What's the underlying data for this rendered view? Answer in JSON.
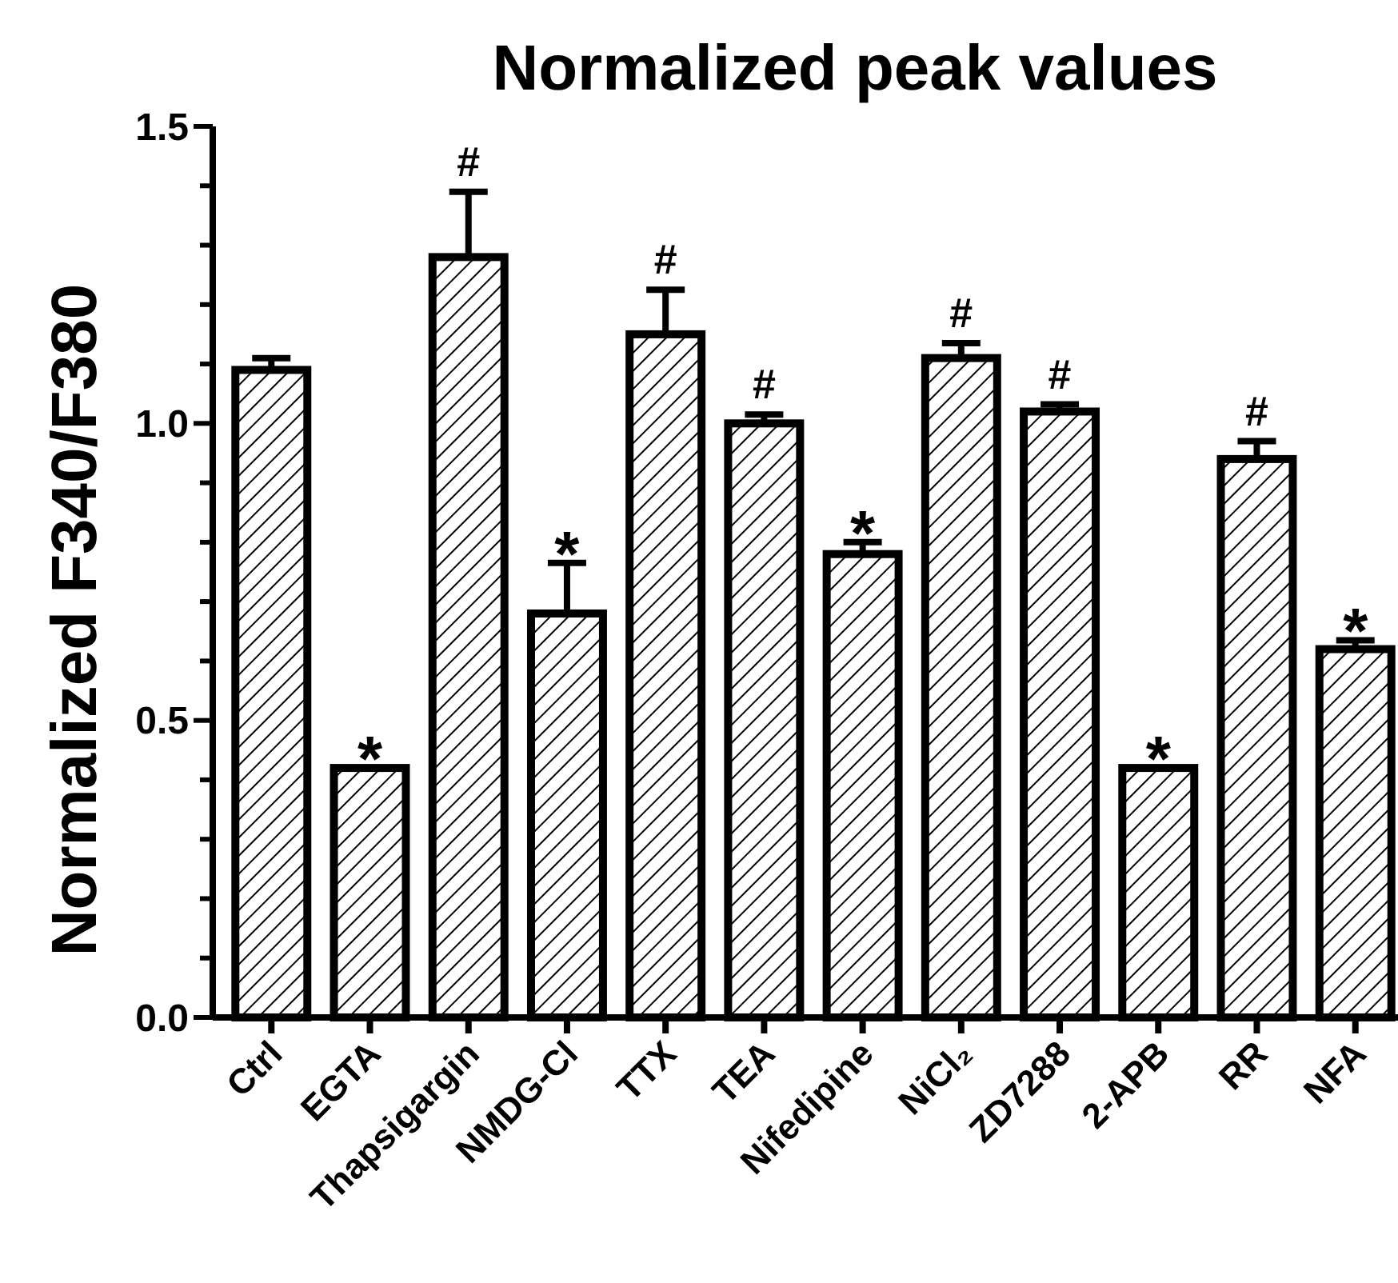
{
  "chart_data": {
    "type": "bar",
    "title": "Normalized peak values",
    "ylabel": "Normalized F340/F380",
    "categories": [
      "Ctrl",
      "EGTA",
      "Thapsigargin",
      "NMDG-Cl",
      "TTX",
      "TEA",
      "Nifedipine",
      "NiCl₂",
      "ZD7288",
      "2-APB",
      "RR",
      "NFA"
    ],
    "values": [
      1.09,
      0.42,
      1.28,
      0.68,
      1.15,
      1.0,
      0.78,
      1.11,
      1.02,
      0.42,
      0.94,
      0.62
    ],
    "errors": [
      0.02,
      null,
      0.11,
      0.085,
      0.075,
      0.015,
      0.02,
      0.025,
      0.012,
      null,
      0.03,
      0.015
    ],
    "color": "#000000",
    "ylim": [
      0,
      1.5
    ],
    "yticks": [
      {
        "value": 0,
        "label": "0.0"
      },
      {
        "value": 0.1,
        "label": null
      },
      {
        "value": 0.2,
        "label": null
      },
      {
        "value": 0.3,
        "label": null
      },
      {
        "value": 0.4,
        "label": null
      },
      {
        "value": 0.5,
        "label": "0.5"
      },
      {
        "value": 0.6,
        "label": null
      },
      {
        "value": 0.7,
        "label": null
      },
      {
        "value": 0.8,
        "label": null
      },
      {
        "value": 0.9,
        "label": null
      },
      {
        "value": 1.0,
        "label": "1.0"
      },
      {
        "value": 1.1,
        "label": null
      },
      {
        "value": 1.2,
        "label": null
      },
      {
        "value": 1.3,
        "label": null
      },
      {
        "value": 1.4,
        "label": null
      },
      {
        "value": 1.5,
        "label": "1.5"
      }
    ],
    "annotations": [
      {
        "text": "*",
        "x": "EGTA",
        "y": 0.42
      },
      {
        "text": "#",
        "x": "Thapsigargin",
        "y": 1.28
      },
      {
        "text": "*",
        "x": "NMDG-Cl",
        "y": 0.68
      },
      {
        "text": "#",
        "x": "TTX",
        "y": 1.15
      },
      {
        "text": "#",
        "x": "TEA",
        "y": 1.0
      },
      {
        "text": "*",
        "x": "Nifedipine",
        "y": 0.78
      },
      {
        "text": "#",
        "x": "NiCl₂",
        "y": 1.11
      },
      {
        "text": "#",
        "x": "ZD7288",
        "y": 1.02
      },
      {
        "text": "*",
        "x": "2-APB",
        "y": 0.42
      },
      {
        "text": "#",
        "x": "RR",
        "y": 0.94
      },
      {
        "text": "*",
        "x": "NFA",
        "y": 0.62
      }
    ],
    "grid": false
  }
}
